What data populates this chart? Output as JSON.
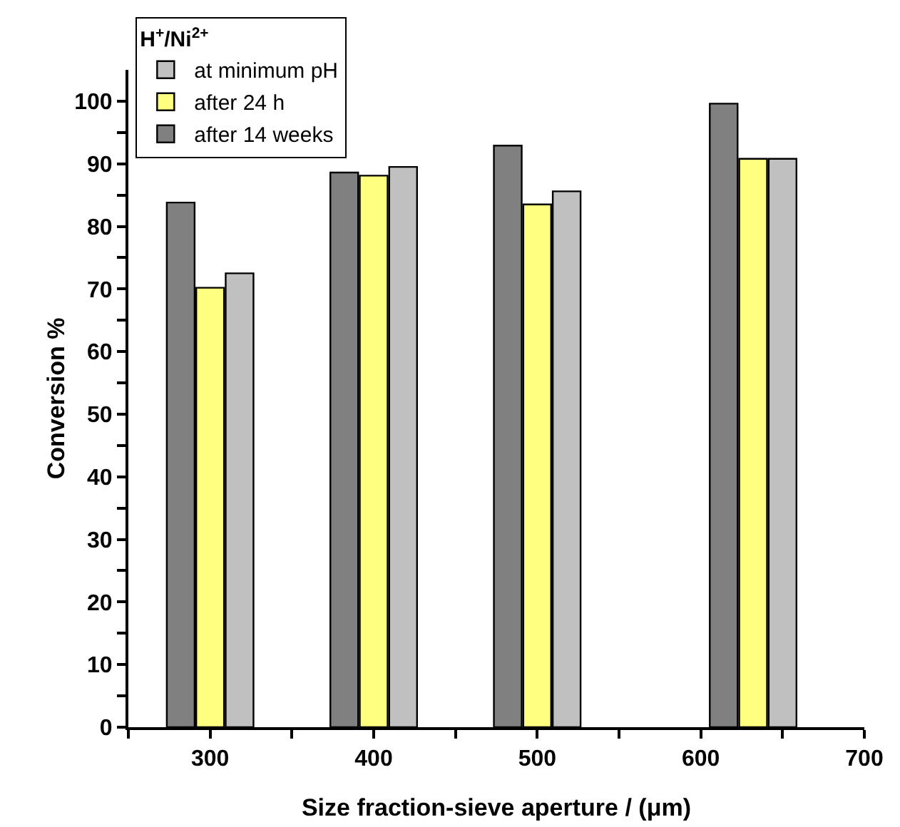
{
  "chart_data": {
    "type": "bar",
    "xlabel": "Size fraction-sieve aperture / (μm)",
    "ylabel": "Conversion %",
    "legend_title": "H$^{+}$/Ni$^{2+}$",
    "series": [
      {
        "name": "after 14 weeks",
        "color": "#808080",
        "x": [
          282,
          382,
          482,
          614
        ],
        "values": [
          83.8,
          88.6,
          92.9,
          99.6
        ]
      },
      {
        "name": "after 24 h",
        "color": "#ffff80",
        "x": [
          300,
          400,
          500,
          632
        ],
        "values": [
          70.2,
          88.1,
          83.5,
          90.8
        ]
      },
      {
        "name": "at minimum pH",
        "color": "#c0c0c0",
        "x": [
          318,
          418,
          518,
          650
        ],
        "values": [
          72.5,
          89.5,
          85.6,
          90.8
        ]
      }
    ],
    "xlim": [
      250,
      700
    ],
    "xticks": [
      {
        "value": 250,
        "label": null
      },
      300,
      {
        "value": 350,
        "label": null
      },
      400,
      {
        "value": 450,
        "label": null
      },
      500,
      {
        "value": 550,
        "label": null
      },
      600,
      {
        "value": 650,
        "label": null
      },
      700
    ],
    "ylim": [
      0,
      105
    ],
    "yticks": [
      0,
      {
        "value": 5,
        "label": null
      },
      10,
      {
        "value": 15,
        "label": null
      },
      20,
      {
        "value": 25,
        "label": null
      },
      30,
      {
        "value": 35,
        "label": null
      },
      40,
      {
        "value": 45,
        "label": null
      },
      50,
      {
        "value": 55,
        "label": null
      },
      60,
      {
        "value": 65,
        "label": null
      },
      70,
      {
        "value": 75,
        "label": null
      },
      80,
      {
        "value": 85,
        "label": null
      },
      90,
      {
        "value": 95,
        "label": null
      },
      100
    ],
    "grid": false,
    "legend": "top left"
  }
}
